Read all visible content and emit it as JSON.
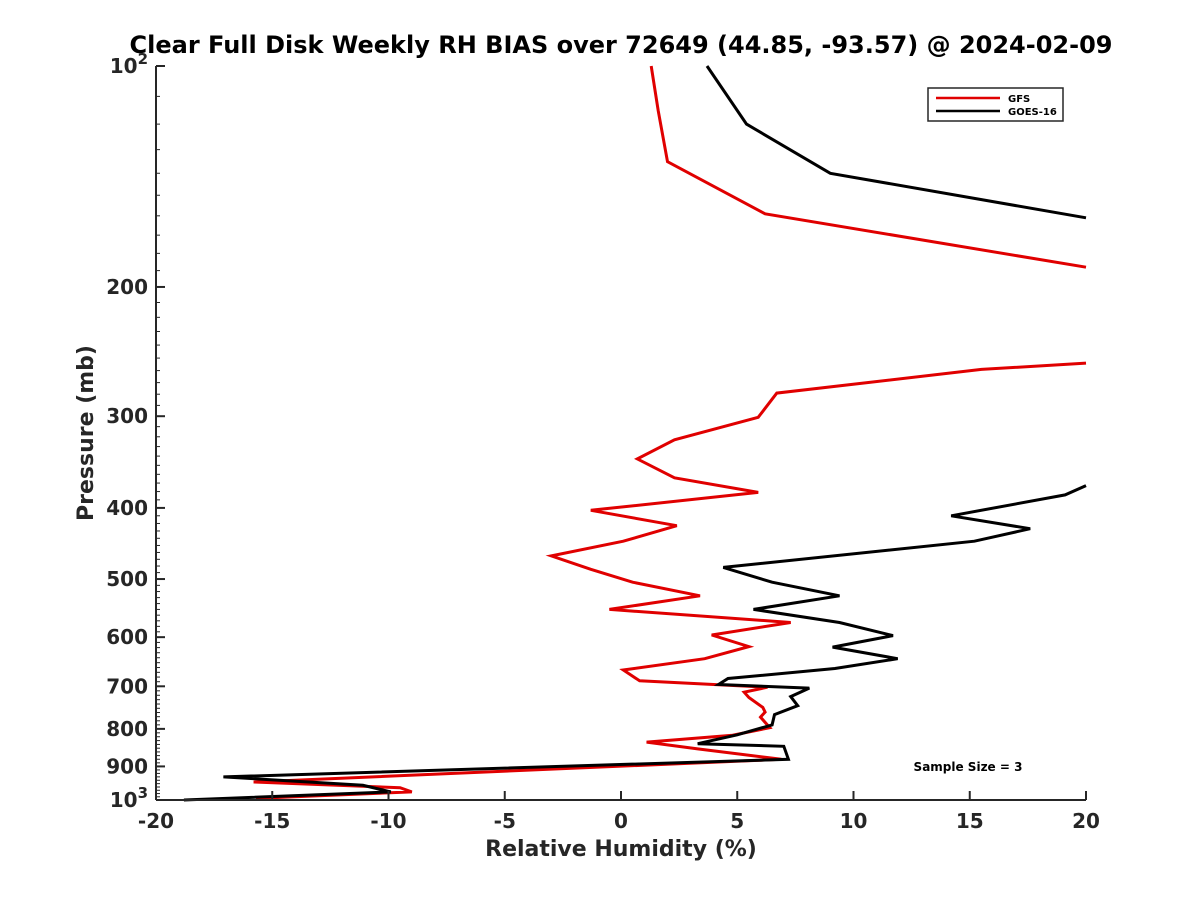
{
  "chart_data": {
    "type": "line",
    "title": "Clear Full Disk Weekly RH BIAS over 72649 (44.85, -93.57) @ 2024-02-09",
    "xlabel": "Relative Humidity (%)",
    "ylabel": "Pressure (mb)",
    "xlim": [
      -20,
      20
    ],
    "ylim": [
      100,
      1000
    ],
    "y_scale": "log",
    "y_reversed": true,
    "x_ticks": [
      "-20",
      "-15",
      "-10",
      "-5",
      "0",
      "5",
      "10",
      "15",
      "20"
    ],
    "y_ticks": [
      {
        "value": 100,
        "base": "10",
        "exp": "2"
      },
      {
        "value": 200,
        "label": "200"
      },
      {
        "value": 300,
        "label": "300"
      },
      {
        "value": 400,
        "label": "400"
      },
      {
        "value": 500,
        "label": "500"
      },
      {
        "value": 600,
        "label": "600"
      },
      {
        "value": 700,
        "label": "700"
      },
      {
        "value": 800,
        "label": "800"
      },
      {
        "value": 900,
        "label": "900"
      },
      {
        "value": 1000,
        "base": "10",
        "exp": "3"
      }
    ],
    "legend_position": "top-right",
    "grid": false,
    "annotation": "Sample Size = 3",
    "series": [
      {
        "name": "GFS",
        "color": "#e00000",
        "segments": [
          [
            [
              1.3,
              100
            ],
            [
              1.6,
              115
            ],
            [
              2.0,
              135
            ],
            [
              6.2,
              159
            ],
            [
              20.0,
              188
            ]
          ],
          [
            [
              20.0,
              254
            ],
            [
              15.5,
              259
            ],
            [
              6.7,
              279
            ],
            [
              5.9,
              301
            ],
            [
              2.3,
              323
            ],
            [
              0.7,
              343
            ],
            [
              2.3,
              364
            ],
            [
              5.9,
              381
            ],
            [
              -1.3,
              403
            ],
            [
              2.4,
              423
            ],
            [
              0.1,
              444
            ],
            [
              -3.0,
              465
            ],
            [
              -1.3,
              485
            ],
            [
              0.5,
              505
            ],
            [
              3.4,
              527
            ],
            [
              -0.5,
              550
            ],
            [
              7.3,
              573
            ],
            [
              3.9,
              596
            ],
            [
              5.5,
              618
            ],
            [
              3.6,
              642
            ],
            [
              0.1,
              665
            ],
            [
              0.8,
              688
            ],
            [
              6.3,
              702
            ],
            [
              5.3,
              713
            ],
            [
              5.5,
              725
            ],
            [
              6.1,
              748
            ],
            [
              6.2,
              759
            ],
            [
              6.0,
              771
            ],
            [
              6.4,
              797
            ],
            [
              4.8,
              816
            ],
            [
              1.1,
              834
            ],
            [
              3.3,
              852
            ],
            [
              6.9,
              880
            ],
            [
              -15.8,
              945
            ],
            [
              -9.5,
              962
            ],
            [
              -9.0,
              975
            ],
            [
              -15.7,
              995
            ]
          ]
        ]
      },
      {
        "name": "GOES-16",
        "color": "#000000",
        "segments": [
          [
            [
              3.7,
              100
            ],
            [
              5.4,
              120
            ],
            [
              9.0,
              140
            ],
            [
              20.0,
              161
            ]
          ],
          [
            [
              20.0,
              373
            ],
            [
              19.1,
              384
            ],
            [
              14.2,
              410
            ],
            [
              17.6,
              427
            ],
            [
              15.2,
              444
            ],
            [
              4.4,
              482
            ],
            [
              6.5,
              505
            ],
            [
              9.4,
              527
            ],
            [
              5.7,
              550
            ],
            [
              9.4,
              573
            ],
            [
              11.7,
              597
            ],
            [
              9.1,
              619
            ],
            [
              11.9,
              642
            ],
            [
              9.2,
              662
            ],
            [
              4.6,
              683
            ],
            [
              4.2,
              696
            ],
            [
              8.1,
              704
            ],
            [
              7.3,
              723
            ],
            [
              7.6,
              744
            ],
            [
              6.6,
              765
            ],
            [
              6.5,
              790
            ],
            [
              5.0,
              815
            ],
            [
              3.3,
              838
            ],
            [
              7.0,
              845
            ],
            [
              7.2,
              880
            ],
            [
              -17.1,
              930
            ],
            [
              -11.1,
              955
            ],
            [
              -9.9,
              975
            ],
            [
              -18.8,
              1000
            ]
          ]
        ]
      }
    ]
  }
}
